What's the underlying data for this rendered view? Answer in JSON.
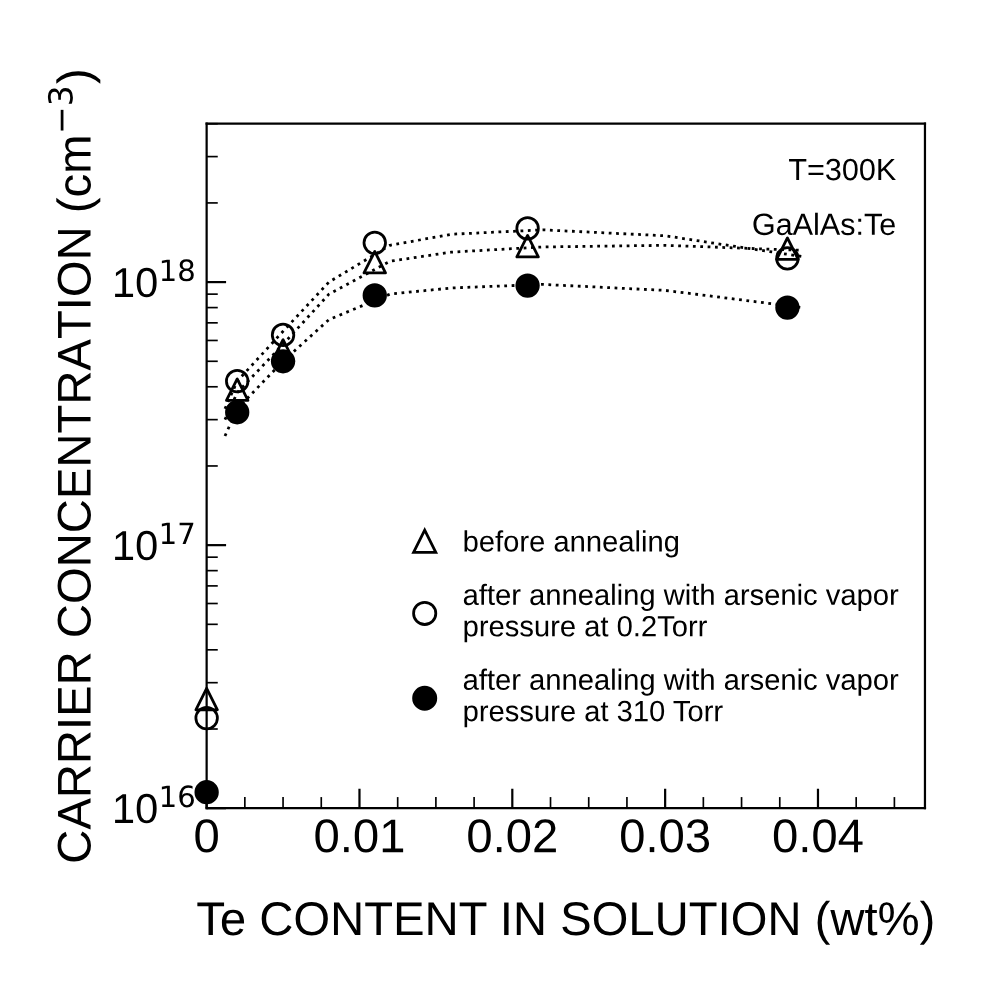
{
  "chart_data": {
    "type": "scatter",
    "xlabel": "Te CONTENT IN SOLUTION (wt%)",
    "ylabel": "CARRIER CONCENTRATION (cm$^{−3}$)",
    "annotations": [
      "T=300K",
      "GaAlAs:Te"
    ],
    "log": "y",
    "xlim": [
      0,
      0.047
    ],
    "xticks": [
      0,
      0.01,
      0.02,
      0.03,
      0.04
    ],
    "ylim": [
      1e+16,
      4e+18
    ],
    "yticks": [
      {
        "value": 1e+16,
        "label": "10$^{16}$"
      },
      {
        "value": 1e+17,
        "label": "10$^{17}$"
      },
      {
        "value": 1e+18,
        "label": "10$^{18}$"
      }
    ],
    "grid": false,
    "legend": "bottom right",
    "series": [
      {
        "name": "before annealing",
        "color": "#000000",
        "marker": "triangle",
        "x": [
          0,
          0.002,
          0.005,
          0.011,
          0.021,
          0.038
        ],
        "values": [
          2.6e+16,
          3.9e+17,
          5.5e+17,
          1.19e+18,
          1.37e+18,
          1.34e+18
        ]
      },
      {
        "name": "after annealing with arsenic vapor\npressure at 0.2Torr",
        "color": "#000000",
        "marker": "circle",
        "x": [
          0,
          0.002,
          0.005,
          0.011,
          0.021,
          0.038
        ],
        "values": [
          2.2e+16,
          4.2e+17,
          6.3e+17,
          1.41e+18,
          1.6e+18,
          1.23e+18
        ]
      },
      {
        "name": "after annealing with arsenic vapor\npressure at 310 Torr",
        "color": "#000000",
        "marker": "circle",
        "x": [
          0,
          0.002,
          0.005,
          0.011,
          0.021,
          0.038
        ],
        "values": [
          1.15e+16,
          3.2e+17,
          5e+17,
          8.9e+17,
          9.7e+17,
          8e+17
        ]
      },
      {
        "type": "line",
        "color": "#000000",
        "line_style": "dotted",
        "x": [
          0.0012,
          0.002,
          0.005,
          0.008,
          0.012,
          0.016,
          0.022,
          0.03,
          0.039
        ],
        "values": [
          3.3e+17,
          4.2e+17,
          6.5e+17,
          1e+18,
          1.38e+18,
          1.52e+18,
          1.58e+18,
          1.5e+18,
          1.25e+18
        ]
      },
      {
        "type": "line",
        "color": "#000000",
        "line_style": "dotted",
        "x": [
          0.0012,
          0.002,
          0.005,
          0.008,
          0.012,
          0.016,
          0.022,
          0.03,
          0.039
        ],
        "values": [
          3e+17,
          3.8e+17,
          5.8e+17,
          9e+17,
          1.2e+18,
          1.3e+18,
          1.36e+18,
          1.38e+18,
          1.32e+18
        ]
      },
      {
        "type": "line",
        "color": "#000000",
        "line_style": "dotted",
        "x": [
          0.0012,
          0.002,
          0.005,
          0.008,
          0.012,
          0.016,
          0.022,
          0.03,
          0.039
        ],
        "values": [
          2.6e+17,
          3.3e+17,
          5e+17,
          7.2e+17,
          9e+17,
          9.5e+17,
          9.8e+17,
          9.3e+17,
          8e+17
        ]
      }
    ]
  }
}
